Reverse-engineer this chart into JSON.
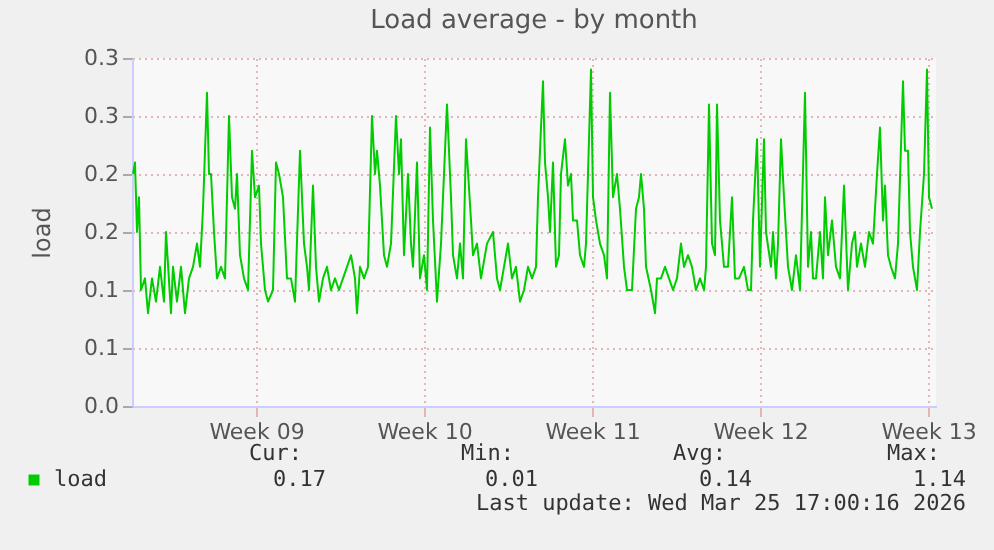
{
  "chart_data": {
    "type": "line",
    "title": "Load average - by month",
    "ylabel": "load",
    "xlim": [
      "2026-02-17T20:00",
      "2026-03-23T08:00"
    ],
    "ylim": [
      0,
      0.3
    ],
    "xticks": [
      {
        "value": "2026-02-23",
        "label": "Week 09"
      },
      {
        "value": "2026-03-02",
        "label": "Week 10"
      },
      {
        "value": "2026-03-09",
        "label": "Week 11"
      },
      {
        "value": "2026-03-16",
        "label": "Week 12"
      },
      {
        "value": "2026-03-23",
        "label": "Week 13"
      }
    ],
    "yticks": [
      {
        "value": 0,
        "label": "0.0"
      },
      {
        "value": 0.05,
        "label": "0.1"
      },
      {
        "value": 0.1,
        "label": "0.1"
      },
      {
        "value": 0.15,
        "label": "0.2"
      },
      {
        "value": 0.2,
        "label": "0.2"
      },
      {
        "value": 0.25,
        "label": "0.3"
      },
      {
        "value": 0.3,
        "label": "0.3"
      }
    ],
    "grid": true,
    "legend": "bottom",
    "annotations": [
      "Cur:",
      "Min:",
      "Avg:",
      "Max:",
      "0.17",
      "0.01",
      "0.14",
      "1.14",
      "Last update: Wed Mar 25 17:00:16 2026"
    ],
    "series": [
      {
        "name": "load",
        "color": "#00cc00",
        "x": [
          "2026-02-17T21:00",
          "2026-02-17T23:00",
          "2026-02-18T01:00",
          "2026-02-18T03:00",
          "2026-02-18T05:00",
          "2026-02-18T09:00",
          "2026-02-18T12:00",
          "2026-02-18T16:00",
          "2026-02-18T20:00",
          "2026-02-19T00:00",
          "2026-02-19T04:00",
          "2026-02-19T06:00",
          "2026-02-19T11:00",
          "2026-02-19T13:00",
          "2026-02-19T17:00",
          "2026-02-19T21:00",
          "2026-02-20T01:00",
          "2026-02-20T05:00",
          "2026-02-20T09:00",
          "2026-02-20T13:00",
          "2026-02-20T16:00",
          "2026-02-20T19:00",
          "2026-02-20T23:00",
          "2026-02-21T01:00",
          "2026-02-21T03:00",
          "2026-02-21T06:00",
          "2026-02-21T09:00",
          "2026-02-21T13:00",
          "2026-02-21T17:00",
          "2026-02-21T21:00",
          "2026-02-22T00:00",
          "2026-02-22T03:00",
          "2026-02-22T05:00",
          "2026-02-22T08:00",
          "2026-02-22T12:00",
          "2026-02-22T16:00",
          "2026-02-22T20:00",
          "2026-02-22T23:00",
          "2026-02-23T03:00",
          "2026-02-23T05:00",
          "2026-02-23T09:00",
          "2026-02-23T12:00",
          "2026-02-23T17:00",
          "2026-02-23T20:00",
          "2026-02-23T23:00",
          "2026-02-24T03:00",
          "2026-02-24T07:00",
          "2026-02-24T11:00",
          "2026-02-24T15:00",
          "2026-02-24T20:00",
          "2026-02-25T00:00",
          "2026-02-25T03:00",
          "2026-02-25T05:00",
          "2026-02-25T09:00",
          "2026-02-25T12:00",
          "2026-02-25T15:00",
          "2026-02-25T19:00",
          "2026-02-25T23:00",
          "2026-02-26T03:00",
          "2026-02-26T07:00",
          "2026-02-26T11:00",
          "2026-02-26T15:00",
          "2026-02-26T19:00",
          "2026-02-26T23:00",
          "2026-02-27T03:00",
          "2026-02-27T05:00",
          "2026-02-27T08:00",
          "2026-02-27T12:00",
          "2026-02-27T16:00",
          "2026-02-27T20:00",
          "2026-02-27T23:00",
          "2026-02-28T01:00",
          "2026-02-28T04:00",
          "2026-02-28T08:00",
          "2026-02-28T11:00",
          "2026-02-28T15:00",
          "2026-02-28T20:00",
          "2026-02-28T23:00",
          "2026-03-01T01:00",
          "2026-03-01T04:00",
          "2026-03-01T08:00",
          "2026-03-01T11:00",
          "2026-03-01T13:00",
          "2026-03-01T17:00",
          "2026-03-01T20:00",
          "2026-03-02T00:00",
          "2026-03-02T03:00",
          "2026-03-02T06:00",
          "2026-03-02T09:00",
          "2026-03-02T13:00",
          "2026-03-02T17:00",
          "2026-03-02T23:00",
          "2026-03-03T03:00",
          "2026-03-03T05:00",
          "2026-03-03T09:00",
          "2026-03-03T12:00",
          "2026-03-03T15:00",
          "2026-03-03T18:00",
          "2026-03-03T23:00",
          "2026-03-04T01:00",
          "2026-03-04T05:00",
          "2026-03-04T09:00",
          "2026-03-04T15:00",
          "2026-03-04T21:00",
          "2026-03-05T01:00",
          "2026-03-05T04:00",
          "2026-03-05T08:00",
          "2026-03-05T12:00",
          "2026-03-05T16:00",
          "2026-03-05T20:00",
          "2026-03-06T00:00",
          "2026-03-06T04:00",
          "2026-03-06T08:00",
          "2026-03-06T12:00",
          "2026-03-06T16:00",
          "2026-03-06T18:00",
          "2026-03-06T23:00",
          "2026-03-07T01:00",
          "2026-03-07T04:00",
          "2026-03-07T06:00",
          "2026-03-07T09:00",
          "2026-03-07T12:00",
          "2026-03-07T15:00",
          "2026-03-07T17:00",
          "2026-03-07T21:00",
          "2026-03-08T00:00",
          "2026-03-08T03:00",
          "2026-03-08T05:00",
          "2026-03-08T09:00",
          "2026-03-08T12:00",
          "2026-03-08T16:00",
          "2026-03-08T18:00",
          "2026-03-08T23:00",
          "2026-03-09T01:00",
          "2026-03-09T04:00",
          "2026-03-09T08:00",
          "2026-03-09T12:00",
          "2026-03-09T15:00",
          "2026-03-09T18:00",
          "2026-03-09T21:00",
          "2026-03-10T01:00",
          "2026-03-10T04:00",
          "2026-03-10T08:00",
          "2026-03-10T11:00",
          "2026-03-10T16:00",
          "2026-03-10T20:00",
          "2026-03-10T23:00",
          "2026-03-11T01:00",
          "2026-03-11T04:00",
          "2026-03-11T06:00",
          "2026-03-11T11:00",
          "2026-03-11T15:00",
          "2026-03-11T17:00",
          "2026-03-11T21:00",
          "2026-03-12T01:00",
          "2026-03-12T05:00",
          "2026-03-12T09:00",
          "2026-03-12T13:00",
          "2026-03-12T17:00",
          "2026-03-12T20:00",
          "2026-03-13T00:00",
          "2026-03-13T04:00",
          "2026-03-13T08:00",
          "2026-03-13T12:00",
          "2026-03-13T16:00",
          "2026-03-13T18:00",
          "2026-03-13T21:00",
          "2026-03-14T00:00",
          "2026-03-14T03:00",
          "2026-03-14T05:00",
          "2026-03-14T08:00",
          "2026-03-14T12:00",
          "2026-03-14T16:00",
          "2026-03-14T20:00",
          "2026-03-14T23:00",
          "2026-03-15T03:00",
          "2026-03-15T08:00",
          "2026-03-15T12:00",
          "2026-03-15T15:00",
          "2026-03-15T17:00",
          "2026-03-15T21:00",
          "2026-03-16T00:00",
          "2026-03-16T04:00",
          "2026-03-16T06:00",
          "2026-03-16T11:00",
          "2026-03-16T13:00",
          "2026-03-16T16:00",
          "2026-03-16T18:00",
          "2026-03-16T21:00",
          "2026-03-17T00:00",
          "2026-03-17T04:00",
          "2026-03-17T08:00",
          "2026-03-17T12:00",
          "2026-03-17T16:00",
          "2026-03-17T21:00",
          "2026-03-18T00:00",
          "2026-03-18T03:00",
          "2026-03-18T05:00",
          "2026-03-18T08:00",
          "2026-03-18T12:00",
          "2026-03-18T15:00",
          "2026-03-18T17:00",
          "2026-03-18T20:00",
          "2026-03-19T00:00",
          "2026-03-19T04:00",
          "2026-03-19T08:00",
          "2026-03-19T12:00",
          "2026-03-19T16:00",
          "2026-03-19T20:00",
          "2026-03-19T23:00",
          "2026-03-20T01:00",
          "2026-03-20T05:00",
          "2026-03-20T09:00",
          "2026-03-20T13:00",
          "2026-03-20T17:00",
          "2026-03-20T21:00",
          "2026-03-21T00:00",
          "2026-03-21T03:00",
          "2026-03-21T05:00",
          "2026-03-21T08:00",
          "2026-03-21T11:00",
          "2026-03-21T15:00",
          "2026-03-21T18:00",
          "2026-03-21T23:00",
          "2026-03-22T01:00",
          "2026-03-22T04:00",
          "2026-03-22T06:00",
          "2026-03-22T09:00",
          "2026-03-22T13:00",
          "2026-03-22T16:00",
          "2026-03-22T20:00",
          "2026-03-22T23:00",
          "2026-03-23T01:00",
          "2026-03-23T04:00"
        ],
        "values": [
          0.2,
          0.21,
          0.15,
          0.18,
          0.1,
          0.11,
          0.08,
          0.11,
          0.09,
          0.12,
          0.09,
          0.15,
          0.08,
          0.12,
          0.09,
          0.12,
          0.08,
          0.11,
          0.12,
          0.14,
          0.12,
          0.17,
          0.27,
          0.2,
          0.2,
          0.15,
          0.11,
          0.12,
          0.11,
          0.25,
          0.18,
          0.17,
          0.2,
          0.13,
          0.11,
          0.1,
          0.22,
          0.18,
          0.19,
          0.14,
          0.1,
          0.09,
          0.1,
          0.21,
          0.2,
          0.18,
          0.11,
          0.11,
          0.09,
          0.22,
          0.14,
          0.12,
          0.1,
          0.19,
          0.12,
          0.09,
          0.11,
          0.12,
          0.1,
          0.11,
          0.1,
          0.11,
          0.12,
          0.13,
          0.11,
          0.08,
          0.12,
          0.11,
          0.12,
          0.25,
          0.2,
          0.22,
          0.19,
          0.13,
          0.12,
          0.14,
          0.25,
          0.2,
          0.23,
          0.13,
          0.2,
          0.14,
          0.12,
          0.21,
          0.11,
          0.13,
          0.1,
          0.24,
          0.16,
          0.09,
          0.14,
          0.26,
          0.18,
          0.13,
          0.11,
          0.14,
          0.11,
          0.23,
          0.16,
          0.13,
          0.14,
          0.11,
          0.14,
          0.15,
          0.11,
          0.1,
          0.12,
          0.14,
          0.11,
          0.12,
          0.09,
          0.1,
          0.12,
          0.11,
          0.12,
          0.18,
          0.28,
          0.21,
          0.18,
          0.15,
          0.21,
          0.12,
          0.13,
          0.2,
          0.23,
          0.19,
          0.2,
          0.16,
          0.16,
          0.13,
          0.12,
          0.14,
          0.29,
          0.18,
          0.16,
          0.14,
          0.13,
          0.11,
          0.27,
          0.18,
          0.2,
          0.17,
          0.12,
          0.1,
          0.1,
          0.17,
          0.18,
          0.2,
          0.17,
          0.12,
          0.1,
          0.08,
          0.11,
          0.11,
          0.12,
          0.11,
          0.1,
          0.11,
          0.14,
          0.12,
          0.13,
          0.12,
          0.1,
          0.11,
          0.1,
          0.12,
          0.26,
          0.14,
          0.13,
          0.26,
          0.16,
          0.12,
          0.12,
          0.18,
          0.11,
          0.11,
          0.12,
          0.1,
          0.1,
          0.16,
          0.23,
          0.12,
          0.23,
          0.15,
          0.12,
          0.15,
          0.11,
          0.14,
          0.23,
          0.18,
          0.12,
          0.1,
          0.13,
          0.1,
          0.27,
          0.12,
          0.15,
          0.11,
          0.11,
          0.15,
          0.11,
          0.18,
          0.13,
          0.16,
          0.12,
          0.11,
          0.19,
          0.1,
          0.14,
          0.15,
          0.12,
          0.14,
          0.12,
          0.15,
          0.14,
          0.2,
          0.24,
          0.16,
          0.19,
          0.13,
          0.12,
          0.11,
          0.14,
          0.28,
          0.22,
          0.22,
          0.15,
          0.12,
          0.1,
          0.15,
          0.2,
          0.29,
          0.18,
          0.17
        ]
      }
    ]
  }
}
